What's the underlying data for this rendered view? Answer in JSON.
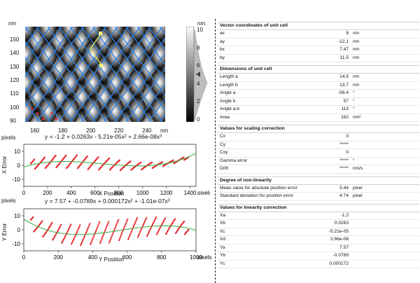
{
  "image_panel": {
    "unit": "nm",
    "y_ticks": [
      "150",
      "140",
      "130",
      "120",
      "110",
      "100",
      "90"
    ],
    "x_ticks": [
      "160",
      "180",
      "200",
      "220",
      "240"
    ],
    "x_unit": "nm"
  },
  "colorbar": {
    "unit": "nm",
    "ticks": [
      "10",
      "8",
      "6",
      "4",
      "2",
      "0"
    ]
  },
  "x_error_plot": {
    "y_unit": "pixels",
    "equation": "y = -1.2 + 0.0263x - 5.21e-05x² + 2.66e-08x³",
    "ylabel": "X Error",
    "xlabel": "X Position",
    "x_unit": "pixels",
    "y_ticks": [
      "10",
      "0",
      "-10"
    ],
    "x_ticks": [
      "0",
      "200",
      "400",
      "600",
      "800",
      "1000",
      "1200",
      "1400"
    ],
    "marker_color": "#e8262b",
    "fit_color": "#3cb44b"
  },
  "y_error_plot": {
    "y_unit": "pixels",
    "equation": "y = 7.57 + -0.0789x + 0.000172x² + -1.01e-07x³",
    "ylabel": "Y Error",
    "xlabel": "Y Position",
    "x_unit": "pixels",
    "y_ticks": [
      "10",
      "0",
      "-10"
    ],
    "x_ticks": [
      "0",
      "200",
      "400",
      "600",
      "800",
      "1000"
    ],
    "marker_color": "#e8262b",
    "fit_color": "#3cb44b"
  },
  "sections": [
    {
      "title": "Vector coordinates of unit cell",
      "rows": [
        {
          "name": "ax",
          "value": "8",
          "unit": "nm"
        },
        {
          "name": "ay",
          "value": "-12.1",
          "unit": "nm"
        },
        {
          "name": "bx",
          "value": "7.47",
          "unit": "nm"
        },
        {
          "name": "by",
          "value": "11.5",
          "unit": "nm"
        }
      ]
    },
    {
      "title": "Dimensions of unit cell",
      "rows": [
        {
          "name": "Length a",
          "value": "14.5",
          "unit": "nm"
        },
        {
          "name": "Length b",
          "value": "13.7",
          "unit": "nm"
        },
        {
          "name": "Angle a",
          "value": "-56.4",
          "unit": "°"
        },
        {
          "name": "Angle b",
          "value": "57",
          "unit": "°"
        },
        {
          "name": "Angle a,b",
          "value": "113",
          "unit": "°"
        },
        {
          "name": "Area",
          "value": "182",
          "unit": "nm²"
        }
      ]
    },
    {
      "title": "Values for scaling correction",
      "rows": [
        {
          "name": "Cx",
          "value": "0",
          "unit": ""
        },
        {
          "name": "Cy",
          "value": "*****",
          "unit": ""
        },
        {
          "name": "Cxy",
          "value": "0",
          "unit": ""
        },
        {
          "name": "Gamma error",
          "value": "*****",
          "unit": "°"
        },
        {
          "name": "Drift",
          "value": "*****",
          "unit": "nm/s"
        }
      ]
    },
    {
      "title": "Degree of non-linearity",
      "rows": [
        {
          "name": "Mean value for absolute position error",
          "value": "5.44",
          "unit": "pixel"
        },
        {
          "name": "Standard deviation for position error",
          "value": "4.74",
          "unit": "pixel"
        }
      ]
    },
    {
      "title": "Values for linearity correction",
      "rows": [
        {
          "name": "Xa",
          "value": "-1.2",
          "unit": ""
        },
        {
          "name": "Xb",
          "value": "0.0263",
          "unit": ""
        },
        {
          "name": "Xc",
          "value": "-5.21e-05",
          "unit": ""
        },
        {
          "name": "Xd",
          "value": "2.66e-08",
          "unit": ""
        },
        {
          "name": "Ya",
          "value": "7.57",
          "unit": ""
        },
        {
          "name": "Yb",
          "value": "-0.0789",
          "unit": ""
        },
        {
          "name": "Yc",
          "value": "0.000172",
          "unit": ""
        }
      ]
    }
  ]
}
